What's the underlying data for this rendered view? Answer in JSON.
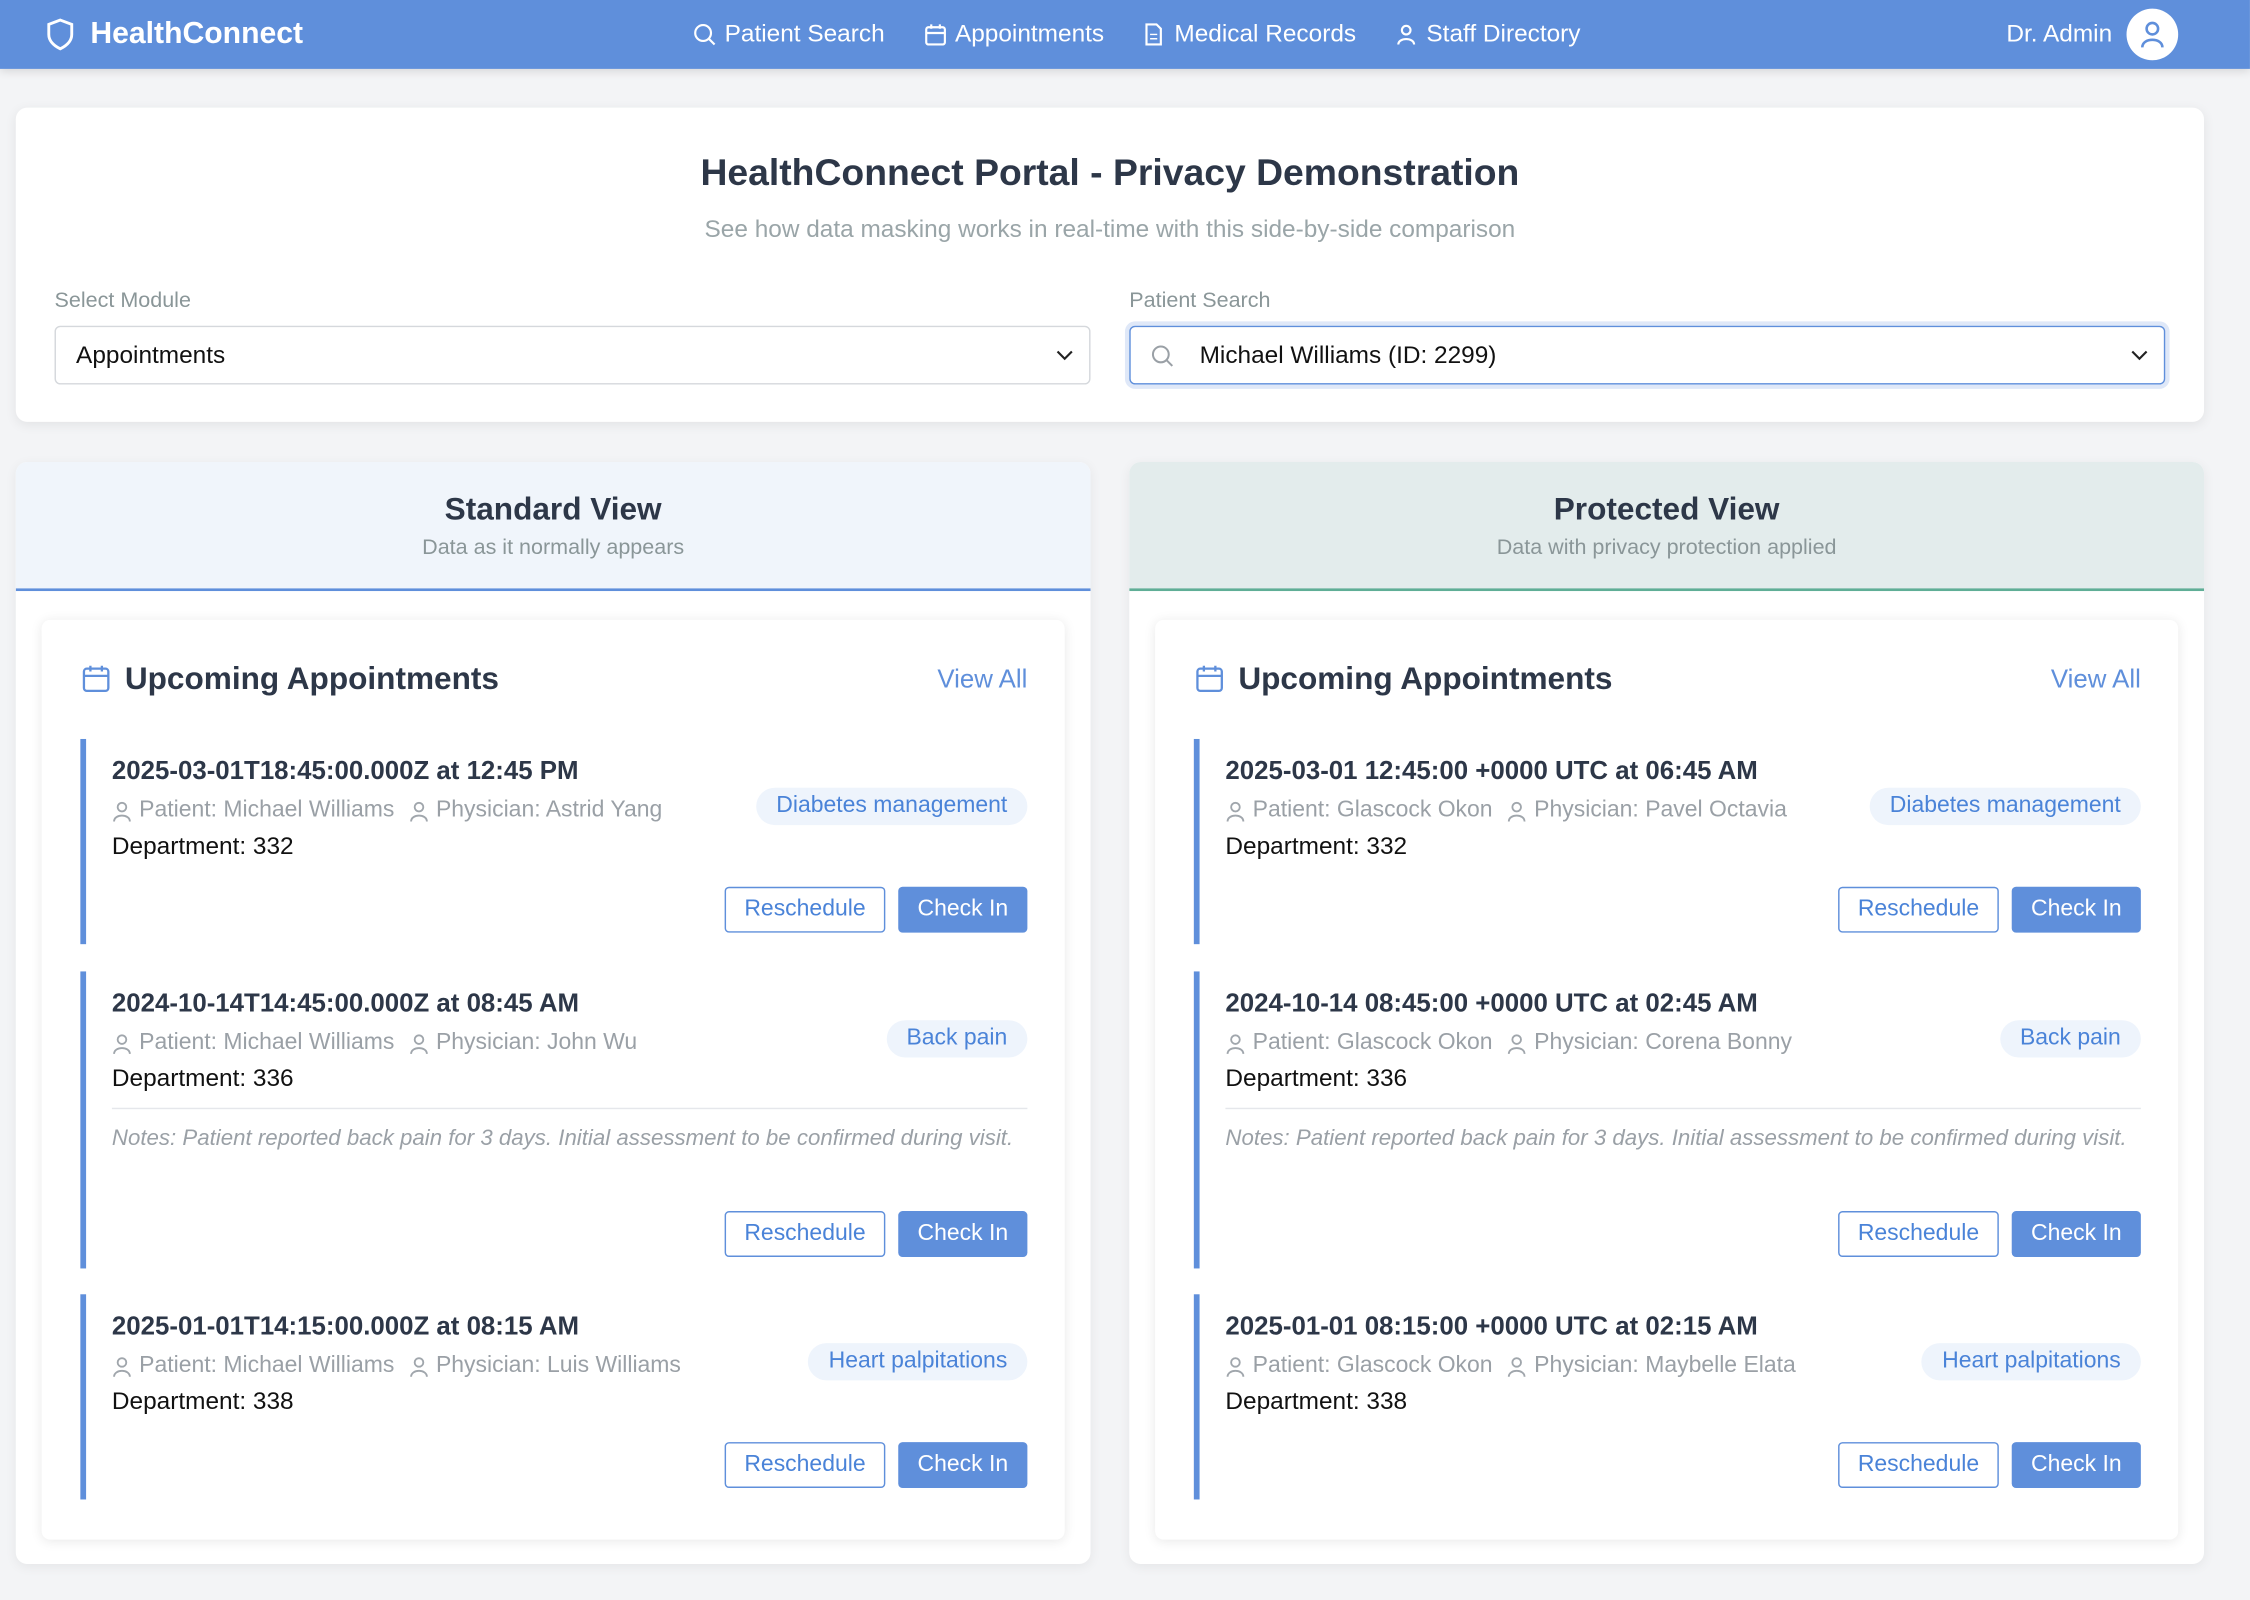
{
  "header": {
    "brand": "HealthConnect",
    "nav": [
      "Patient Search",
      "Appointments",
      "Medical Records",
      "Staff Directory"
    ],
    "user": "Dr. Admin",
    "color": "#5f8fdb"
  },
  "intro": {
    "title": "HealthConnect Portal - Privacy Demonstration",
    "subtitle": "See how data masking works in real-time with this side-by-side comparison",
    "module_label": "Select Module",
    "module_value": "Appointments",
    "search_label": "Patient Search",
    "search_value": "Michael Williams (ID: 2299)"
  },
  "panels": [
    {
      "title": "Standard View",
      "subtitle": "Data as it normally appears",
      "accent": "#5f8fdb",
      "card_title": "Upcoming Appointments",
      "view_all": "View All",
      "appointments": [
        {
          "datetime": "2025-03-01T18:45:00.000Z at 12:45 PM",
          "patient": "Patient: Michael Williams",
          "physician": "Physician: Astrid Yang",
          "department": "Department: 332",
          "tag": "Diabetes management",
          "notes": ""
        },
        {
          "datetime": "2024-10-14T14:45:00.000Z at 08:45 AM",
          "patient": "Patient: Michael Williams",
          "physician": "Physician: John Wu",
          "department": "Department: 336",
          "tag": "Back pain",
          "notes_label": "Notes:",
          "notes": "Patient reported back pain for 3 days. Initial assessment to be confirmed during visit."
        },
        {
          "datetime": "2025-01-01T14:15:00.000Z at 08:15 AM",
          "patient": "Patient: Michael Williams",
          "physician": "Physician: Luis Williams",
          "department": "Department: 338",
          "tag": "Heart palpitations",
          "notes": ""
        }
      ]
    },
    {
      "title": "Protected View",
      "subtitle": "Data with privacy protection applied",
      "accent": "#5fae96",
      "card_title": "Upcoming Appointments",
      "view_all": "View All",
      "appointments": [
        {
          "datetime": "2025-03-01 12:45:00 +0000 UTC at 06:45 AM",
          "patient": "Patient: Glascock Okon",
          "physician": "Physician: Pavel Octavia",
          "department": "Department: 332",
          "tag": "Diabetes management",
          "notes": ""
        },
        {
          "datetime": "2024-10-14 08:45:00 +0000 UTC at 02:45 AM",
          "patient": "Patient: Glascock Okon",
          "physician": "Physician: Corena Bonny",
          "department": "Department: 336",
          "tag": "Back pain",
          "notes_label": "Notes:",
          "notes": "Patient reported back pain for 3 days. Initial assessment to be confirmed during visit."
        },
        {
          "datetime": "2025-01-01 08:15:00 +0000 UTC at 02:15 AM",
          "patient": "Patient: Glascock Okon",
          "physician": "Physician: Maybelle Elata",
          "department": "Department: 338",
          "tag": "Heart palpitations",
          "notes": ""
        }
      ]
    }
  ],
  "buttons": {
    "reschedule": "Reschedule",
    "check_in": "Check In"
  }
}
